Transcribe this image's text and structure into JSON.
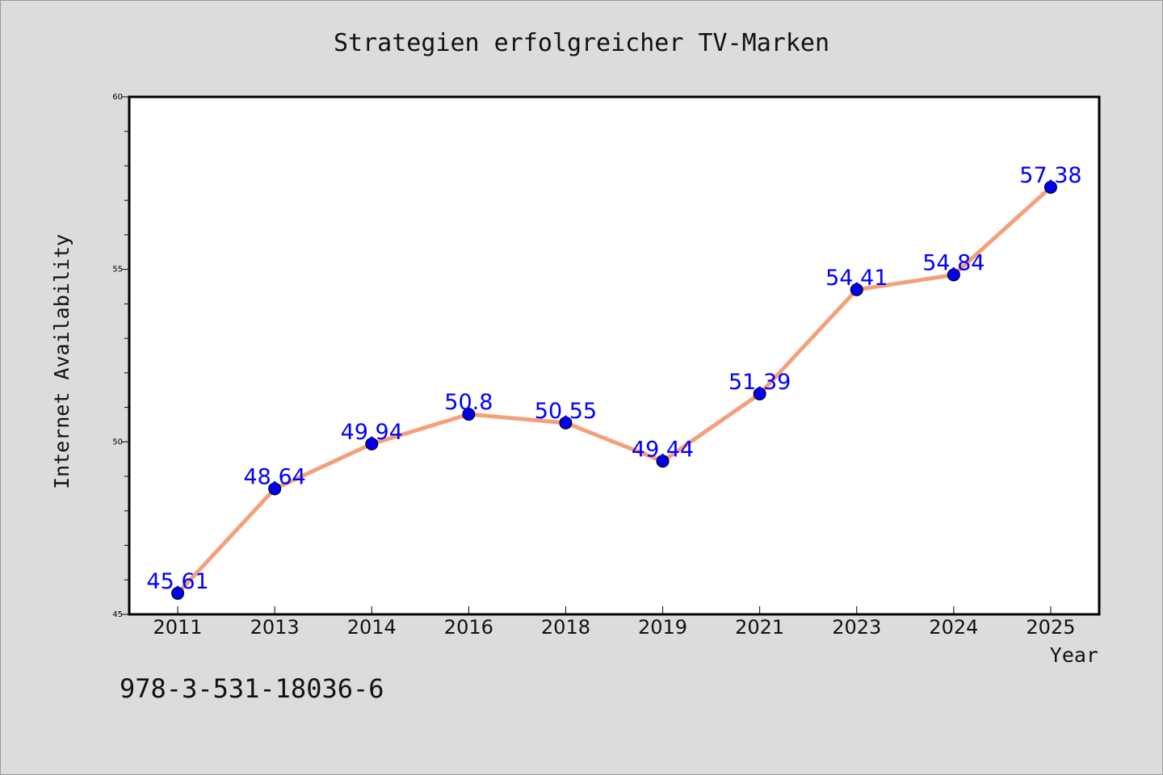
{
  "chart_data": {
    "type": "line",
    "title": "Strategien erfolgreicher TV-Marken",
    "xlabel": "Year",
    "ylabel": "Internet Availability",
    "categories": [
      "2011",
      "2013",
      "2014",
      "2016",
      "2018",
      "2019",
      "2021",
      "2023",
      "2024",
      "2025"
    ],
    "series": [
      {
        "values": [
          45.61,
          48.64,
          49.94,
          50.8,
          50.55,
          49.44,
          51.39,
          54.41,
          54.84,
          57.38
        ],
        "labels": [
          "45.61",
          "48.64",
          "49.94",
          "50.8",
          "50.55",
          "49.44",
          "51.39",
          "54.41",
          "54.84",
          "57.38"
        ],
        "line_color": "#f4a07a",
        "marker_color": "#0000ee",
        "label_color": "#0000ff"
      }
    ],
    "ylim": [
      45,
      60
    ],
    "yticks": [
      "45",
      "50",
      "55",
      "60"
    ],
    "grid": false,
    "legend": "none"
  },
  "footer": {
    "isbn": "978-3-531-18036-6"
  }
}
